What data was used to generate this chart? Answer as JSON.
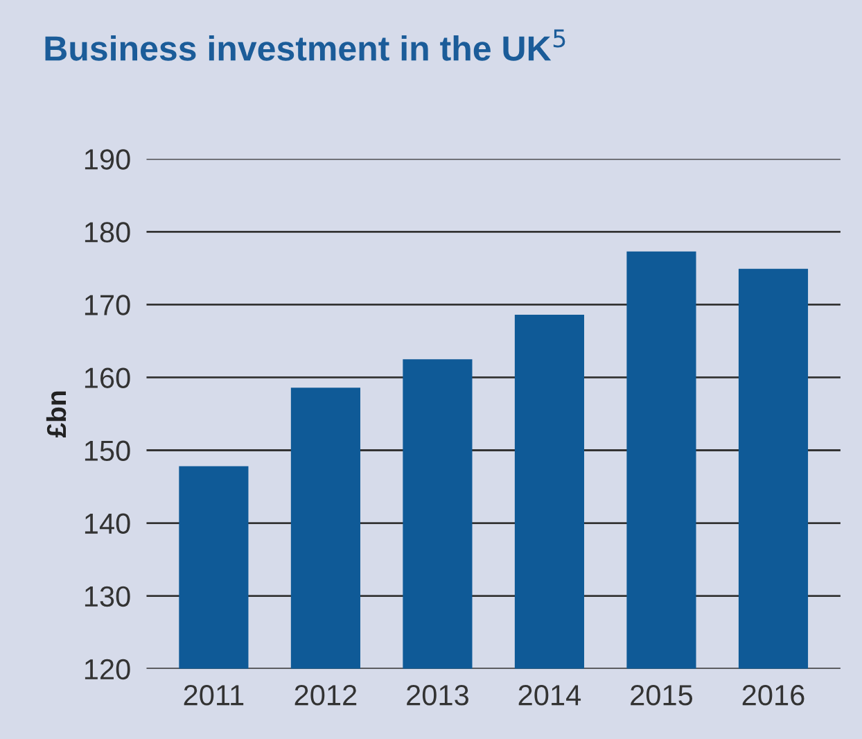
{
  "chart_data": {
    "type": "bar",
    "title": "Business investment in the UK$^{5}$",
    "ylabel": "£bn",
    "categories": [
      "2011",
      "2012",
      "2013",
      "2014",
      "2015",
      "2016"
    ],
    "values": [
      147.8,
      158.6,
      162.5,
      168.6,
      177.3,
      174.9
    ],
    "color": "#0f5a97",
    "ylim": [
      120,
      190
    ],
    "yticks": [
      120,
      130,
      140,
      150,
      160,
      170,
      180,
      190
    ],
    "grid": "y"
  }
}
